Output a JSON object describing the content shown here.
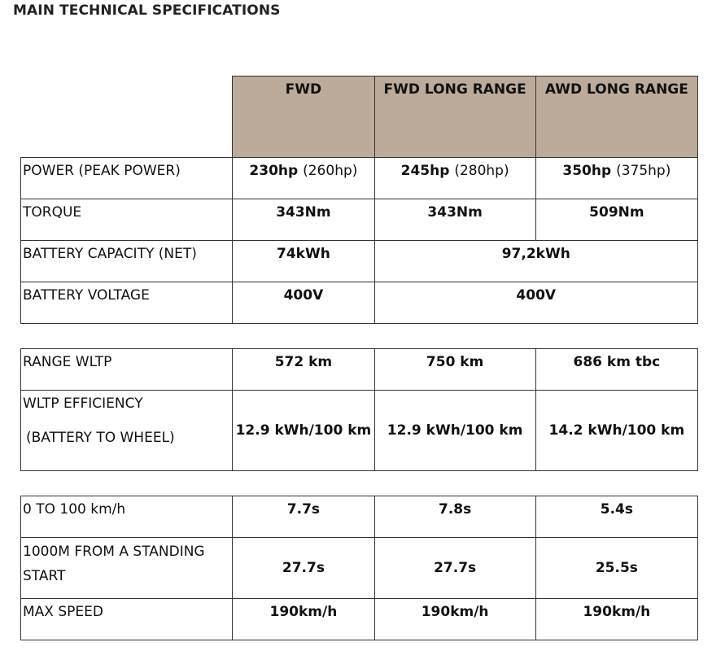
{
  "title": "MAIN TECHNICAL SPECIFICATIONS",
  "columns": [
    "FWD",
    "FWD LONG RANGE",
    "AWD LONG RANGE"
  ],
  "group1": {
    "power": {
      "label": "POWER (PEAK POWER)",
      "fwd": "230hp",
      "fwd_note": "(260hp)",
      "fwdlr": "245hp",
      "fwdlr_note": "(280hp)",
      "awdlr": "350hp",
      "awdlr_note": "(375hp)"
    },
    "torque": {
      "label": "TORQUE",
      "fwd": "343Nm",
      "fwdlr": "343Nm",
      "awdlr": "509Nm"
    },
    "battery_capacity": {
      "label": "BATTERY CAPACITY (NET)",
      "fwd": "74kWh",
      "long_range": "97,2kWh"
    },
    "battery_voltage": {
      "label": "BATTERY VOLTAGE",
      "fwd": "400V",
      "long_range": "400V"
    }
  },
  "group2": {
    "range": {
      "label": "RANGE WLTP",
      "fwd": "572 km",
      "fwdlr": "750 km",
      "awdlr": "686 km tbc"
    },
    "efficiency": {
      "label": "WLTP EFFICIENCY",
      "sublabel": "(BATTERY TO WHEEL)",
      "fwd": "12.9 kWh/100 km",
      "fwdlr": "12.9 kWh/100 km",
      "awdlr": "14.2 kWh/100 km"
    }
  },
  "group3": {
    "accel": {
      "label": "0 TO 100 km/h",
      "fwd": "7.7s",
      "fwdlr": "7.8s",
      "awdlr": "5.4s"
    },
    "standing": {
      "label": "1000M FROM A STANDING START",
      "fwd": "27.7s",
      "fwdlr": "27.7s",
      "awdlr": "25.5s"
    },
    "max_speed": {
      "label": "MAX SPEED",
      "fwd": "190km/h",
      "fwdlr": "190km/h",
      "awdlr": "190km/h"
    }
  }
}
